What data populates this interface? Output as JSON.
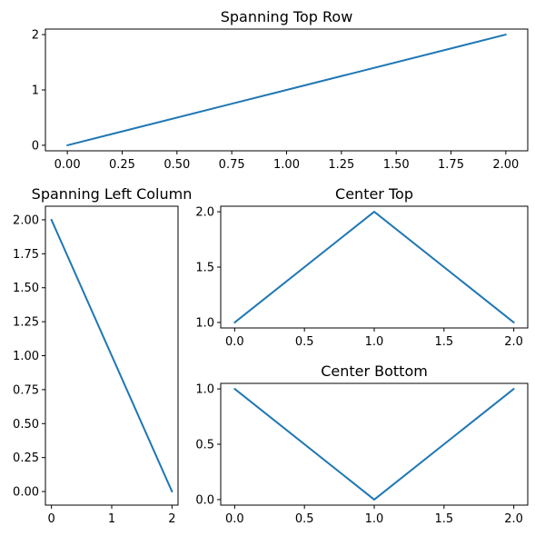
{
  "chart_data": [
    {
      "type": "line",
      "title": "Spanning Top Row",
      "xlabel": "",
      "ylabel": "",
      "xlim": [
        -0.1,
        2.1
      ],
      "ylim": [
        -0.1,
        2.1
      ],
      "xticks": [
        0.0,
        0.25,
        0.5,
        0.75,
        1.0,
        1.25,
        1.5,
        1.75,
        2.0
      ],
      "xtick_labels": [
        "0.00",
        "0.25",
        "0.50",
        "0.75",
        "1.00",
        "1.25",
        "1.50",
        "1.75",
        "2.00"
      ],
      "yticks": [
        0,
        1,
        2
      ],
      "ytick_labels": [
        "0",
        "1",
        "2"
      ],
      "grid": false,
      "series": [
        {
          "x": [
            0,
            1,
            2
          ],
          "y": [
            0,
            1,
            2
          ],
          "color": "#1f77b4"
        }
      ]
    },
    {
      "type": "line",
      "title": "Spanning Left Column",
      "xlabel": "",
      "ylabel": "",
      "xlim": [
        -0.1,
        2.1
      ],
      "ylim": [
        -0.1,
        2.1
      ],
      "xticks": [
        0,
        1,
        2
      ],
      "xtick_labels": [
        "0",
        "1",
        "2"
      ],
      "yticks": [
        0.0,
        0.25,
        0.5,
        0.75,
        1.0,
        1.25,
        1.5,
        1.75,
        2.0
      ],
      "ytick_labels": [
        "0.00",
        "0.25",
        "0.50",
        "0.75",
        "1.00",
        "1.25",
        "1.50",
        "1.75",
        "2.00"
      ],
      "grid": false,
      "series": [
        {
          "x": [
            0,
            1,
            2
          ],
          "y": [
            2,
            1,
            0
          ],
          "color": "#1f77b4"
        }
      ]
    },
    {
      "type": "line",
      "title": "Center Top",
      "xlabel": "",
      "ylabel": "",
      "xlim": [
        -0.1,
        2.1
      ],
      "ylim": [
        0.95,
        2.05
      ],
      "xticks": [
        0.0,
        0.5,
        1.0,
        1.5,
        2.0
      ],
      "xtick_labels": [
        "0.0",
        "0.5",
        "1.0",
        "1.5",
        "2.0"
      ],
      "yticks": [
        1.0,
        1.5,
        2.0
      ],
      "ytick_labels": [
        "1.0",
        "1.5",
        "2.0"
      ],
      "grid": false,
      "series": [
        {
          "x": [
            0,
            1,
            2
          ],
          "y": [
            1,
            2,
            1
          ],
          "color": "#1f77b4"
        }
      ]
    },
    {
      "type": "line",
      "title": "Center Bottom",
      "xlabel": "",
      "ylabel": "",
      "xlim": [
        -0.1,
        2.1
      ],
      "ylim": [
        -0.05,
        1.05
      ],
      "xticks": [
        0.0,
        0.5,
        1.0,
        1.5,
        2.0
      ],
      "xtick_labels": [
        "0.0",
        "0.5",
        "1.0",
        "1.5",
        "2.0"
      ],
      "yticks": [
        0.0,
        0.5,
        1.0
      ],
      "ytick_labels": [
        "0.0",
        "0.5",
        "1.0"
      ],
      "grid": false,
      "series": [
        {
          "x": [
            0,
            1,
            2
          ],
          "y": [
            1,
            0,
            1
          ],
          "color": "#1f77b4"
        }
      ]
    }
  ]
}
